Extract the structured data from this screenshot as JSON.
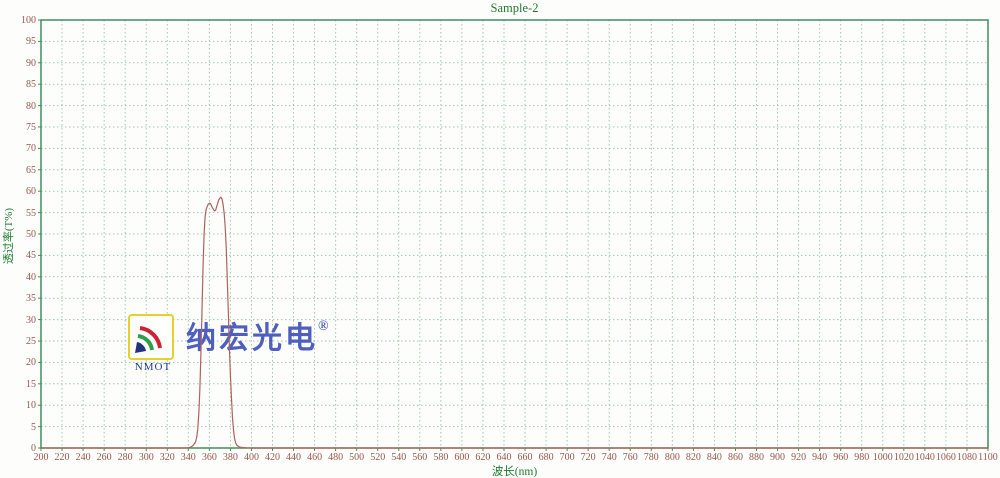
{
  "page": {
    "background": "#fdfdfc"
  },
  "chart_data": {
    "type": "line",
    "title": "Sample-2",
    "xlabel": "波长(nm)",
    "ylabel": "透过率(T%)",
    "xlim": [
      200,
      1100
    ],
    "ylim": [
      0,
      100
    ],
    "x_tick_step": 20,
    "y_tick_step": 5,
    "grid": true,
    "legend": "none",
    "x_ticks": [
      200,
      220,
      240,
      260,
      280,
      300,
      320,
      340,
      360,
      380,
      400,
      420,
      440,
      460,
      480,
      500,
      520,
      540,
      560,
      580,
      600,
      620,
      640,
      660,
      680,
      700,
      720,
      740,
      760,
      780,
      800,
      820,
      840,
      860,
      880,
      900,
      920,
      940,
      960,
      980,
      1000,
      1020,
      1040,
      1060,
      1080,
      1100
    ],
    "y_ticks": [
      0,
      5,
      10,
      15,
      20,
      25,
      30,
      35,
      40,
      45,
      50,
      55,
      60,
      65,
      70,
      75,
      80,
      85,
      90,
      95,
      100
    ],
    "colors": {
      "frame": "#3e8e5f",
      "grid": "#9fc9a7",
      "title": "#1e7b2e",
      "axis_label": "#1e7b2e",
      "tick_label": "#97584c",
      "curve": "#b2615a"
    },
    "series": [
      {
        "name": "Sample-2",
        "color": "#b2615a",
        "points": [
          [
            200,
            0
          ],
          [
            260,
            0
          ],
          [
            300,
            0
          ],
          [
            330,
            0
          ],
          [
            338,
            0
          ],
          [
            341,
            0.1
          ],
          [
            343,
            0.3
          ],
          [
            345,
            0.7
          ],
          [
            347,
            1.5
          ],
          [
            348,
            2.5
          ],
          [
            349,
            4.5
          ],
          [
            350,
            8
          ],
          [
            351,
            14
          ],
          [
            352,
            22
          ],
          [
            353,
            32
          ],
          [
            354,
            42
          ],
          [
            355,
            50
          ],
          [
            356,
            54
          ],
          [
            357,
            55.8
          ],
          [
            358,
            56.5
          ],
          [
            359,
            57
          ],
          [
            360,
            57.2
          ],
          [
            361,
            57.1
          ],
          [
            362,
            56.6
          ],
          [
            363,
            56.1
          ],
          [
            364,
            55.7
          ],
          [
            365,
            55.4
          ],
          [
            366,
            55.6
          ],
          [
            367,
            56.4
          ],
          [
            368,
            57.3
          ],
          [
            369,
            58
          ],
          [
            370,
            58.4
          ],
          [
            371,
            58.6
          ],
          [
            372,
            58.2
          ],
          [
            373,
            57
          ],
          [
            374,
            55
          ],
          [
            375,
            52
          ],
          [
            376,
            47
          ],
          [
            377,
            40
          ],
          [
            378,
            32
          ],
          [
            379,
            24
          ],
          [
            380,
            17
          ],
          [
            381,
            11.5
          ],
          [
            382,
            7
          ],
          [
            383,
            4
          ],
          [
            384,
            2.2
          ],
          [
            385,
            1.2
          ],
          [
            386,
            0.7
          ],
          [
            388,
            0.3
          ],
          [
            390,
            0.15
          ],
          [
            395,
            0.05
          ],
          [
            400,
            0
          ],
          [
            500,
            0
          ],
          [
            600,
            0
          ],
          [
            700,
            0
          ],
          [
            800,
            0
          ],
          [
            900,
            0
          ],
          [
            1000,
            0
          ],
          [
            1100,
            0
          ]
        ]
      }
    ]
  },
  "watermark": {
    "brand_cn": "纳宏光电",
    "registered": "®",
    "brand_abbr": "NMOT",
    "colors": {
      "text_cn": "#4f5fc0",
      "abbr": "#1f3a93",
      "logo_border": "#e6cf2e",
      "arc_inner": "#23337f",
      "arc_middle": "#2e9e4a",
      "arc_outer": "#cc2233"
    }
  }
}
